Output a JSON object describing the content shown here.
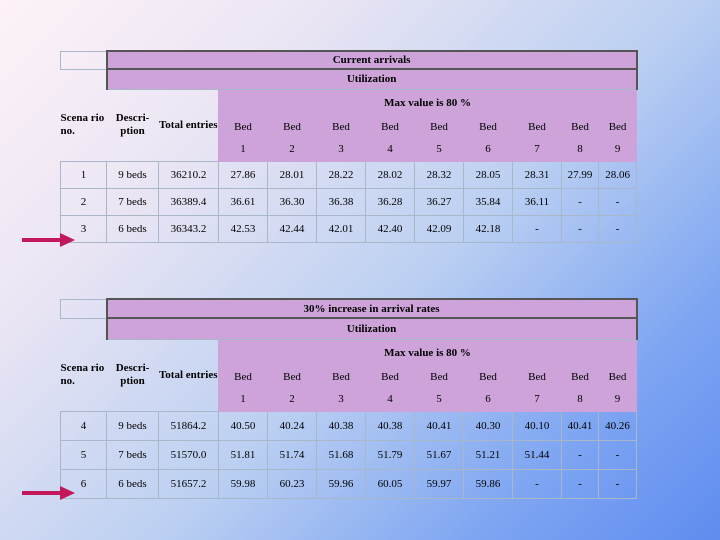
{
  "table1": {
    "title": "Current arrivals",
    "utilization": "Utilization",
    "max_value": "Max value is  80 %",
    "col_scenario": "Scena rio no.",
    "col_description": "Descri- ption",
    "col_total": "Total entries",
    "bed_label": "Bed",
    "bed_numbers": [
      "1",
      "2",
      "3",
      "4",
      "5",
      "6",
      "7",
      "8",
      "9"
    ],
    "rows": [
      {
        "scenario": "1",
        "description": "9 beds",
        "total": "36210.2",
        "values": [
          "27.86",
          "28.01",
          "28.22",
          "28.02",
          "28.32",
          "28.05",
          "28.31",
          "27.99",
          "28.06"
        ]
      },
      {
        "scenario": "2",
        "description": "7 beds",
        "total": "36389.4",
        "values": [
          "36.61",
          "36.30",
          "36.38",
          "36.28",
          "36.27",
          "35.84",
          "36.11",
          "-",
          "-"
        ]
      },
      {
        "scenario": "3",
        "description": "6 beds",
        "total": "36343.2",
        "values": [
          "42.53",
          "42.44",
          "42.01",
          "42.40",
          "42.09",
          "42.18",
          "-",
          "-",
          "-"
        ]
      }
    ]
  },
  "table2": {
    "title": "30%  increase in arrival rates",
    "utilization": "Utilization",
    "max_value": "Max value is  80    %",
    "col_scenario": "Scena rio no.",
    "col_description": "Descri- ption",
    "col_total": "Total entries",
    "bed_label": "Bed",
    "bed_numbers": [
      "1",
      "2",
      "3",
      "4",
      "5",
      "6",
      "7",
      "8",
      "9"
    ],
    "rows": [
      {
        "scenario": "4",
        "description": "9 beds",
        "total": "51864.2",
        "values": [
          "40.50",
          "40.24",
          "40.38",
          "40.38",
          "40.41",
          "40.30",
          "40.10",
          "40.41",
          "40.26"
        ]
      },
      {
        "scenario": "5",
        "description": "7 beds",
        "total": "51570.0",
        "values": [
          "51.81",
          "51.74",
          "51.68",
          "51.79",
          "51.67",
          "51.21",
          "51.44",
          "-",
          "-"
        ]
      },
      {
        "scenario": "6",
        "description": "6 beds",
        "total": "51657.2",
        "values": [
          "59.98",
          "60.23",
          "59.96",
          "60.05",
          "59.97",
          "59.86",
          "-",
          "-",
          "-"
        ]
      }
    ]
  },
  "arrows": {
    "color": "#c2185b",
    "points_to": [
      "scenario 3",
      "scenario 6"
    ]
  }
}
